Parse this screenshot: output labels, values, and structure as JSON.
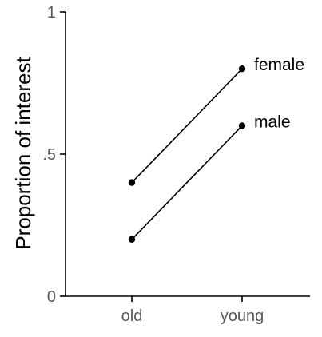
{
  "chart_data": {
    "type": "line",
    "title": "",
    "xlabel": "",
    "ylabel": "Proportion of interest",
    "categories": [
      "old",
      "young"
    ],
    "ylim": [
      0,
      1
    ],
    "yticks": [
      {
        "value": 0,
        "label": "0"
      },
      {
        "value": 0.5,
        "label": ".5"
      },
      {
        "value": 1,
        "label": "1"
      }
    ],
    "series": [
      {
        "name": "female",
        "values": [
          0.4,
          0.8
        ]
      },
      {
        "name": "male",
        "values": [
          0.2,
          0.6
        ]
      }
    ],
    "grid": false,
    "legend": "direct labels at right end of each line",
    "colors": {
      "line": "#000000",
      "tick_label": "#595959"
    }
  }
}
